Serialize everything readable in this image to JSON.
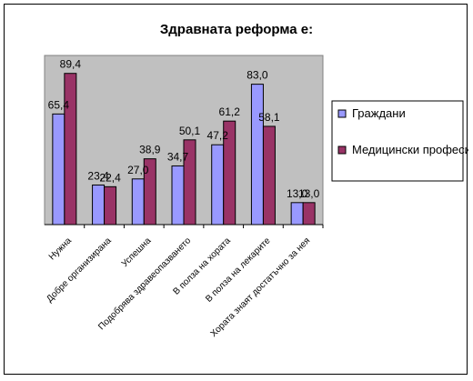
{
  "chart_data": {
    "type": "bar",
    "title": "Здравната реформа е:",
    "categories": [
      "Нужна",
      "Добре организирана",
      "Успешна",
      "Подобрява здравеопазването",
      "В полза на хората",
      "В полза на лекарите",
      "Хората знаят достатъчно за нея"
    ],
    "series": [
      {
        "name": "Граждани",
        "color": "#9999FF",
        "values": [
          65.4,
          23.4,
          27.0,
          34.7,
          47.2,
          83.0,
          13.0
        ]
      },
      {
        "name": "Медицински професионалисти",
        "color": "#993366",
        "values": [
          89.4,
          22.4,
          38.9,
          50.1,
          61.2,
          58.1,
          13.0
        ]
      }
    ],
    "data_labels": [
      [
        "65,4",
        "23,4",
        "27,0",
        "34,7",
        "47,2",
        "83,0",
        "13,0"
      ],
      [
        "89,4",
        "22,4",
        "38,9",
        "50,1",
        "61,2",
        "58,1",
        "13,0"
      ]
    ],
    "legend_lines": [
      [
        "Граждани"
      ],
      [
        "Медицински",
        "професионалисти"
      ]
    ],
    "ylim": [
      0,
      100
    ],
    "grid": false,
    "legend_position": "right",
    "plot_background": "#C0C0C0",
    "xlabel": "",
    "ylabel": ""
  }
}
